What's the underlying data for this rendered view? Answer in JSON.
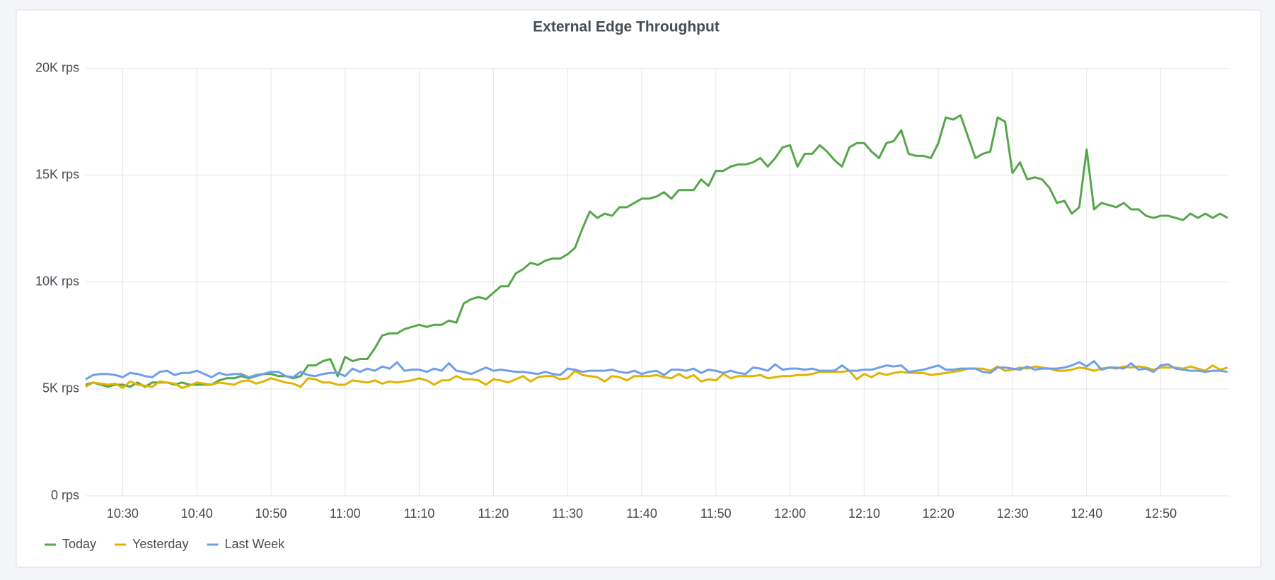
{
  "chart_data": {
    "type": "line",
    "title": "External Edge Throughput",
    "x": [
      "10:25",
      "10:26",
      "10:27",
      "10:28",
      "10:29",
      "10:30",
      "10:31",
      "10:32",
      "10:33",
      "10:34",
      "10:35",
      "10:36",
      "10:37",
      "10:38",
      "10:39",
      "10:40",
      "10:41",
      "10:42",
      "10:43",
      "10:44",
      "10:45",
      "10:46",
      "10:47",
      "10:48",
      "10:49",
      "10:50",
      "10:51",
      "10:52",
      "10:53",
      "10:54",
      "10:55",
      "10:56",
      "10:57",
      "10:58",
      "10:59",
      "11:00",
      "11:01",
      "11:02",
      "11:03",
      "11:04",
      "11:05",
      "11:06",
      "11:07",
      "11:08",
      "11:09",
      "11:10",
      "11:11",
      "11:12",
      "11:13",
      "11:14",
      "11:15",
      "11:16",
      "11:17",
      "11:18",
      "11:19",
      "11:20",
      "11:21",
      "11:22",
      "11:23",
      "11:24",
      "11:25",
      "11:26",
      "11:27",
      "11:28",
      "11:29",
      "11:30",
      "11:31",
      "11:32",
      "11:33",
      "11:34",
      "11:35",
      "11:36",
      "11:37",
      "11:38",
      "11:39",
      "11:40",
      "11:41",
      "11:42",
      "11:43",
      "11:44",
      "11:45",
      "11:46",
      "11:47",
      "11:48",
      "11:49",
      "11:50",
      "11:51",
      "11:52",
      "11:53",
      "11:54",
      "11:55",
      "11:56",
      "11:57",
      "11:58",
      "11:59",
      "12:00",
      "12:01",
      "12:02",
      "12:03",
      "12:04",
      "12:05",
      "12:06",
      "12:07",
      "12:08",
      "12:09",
      "12:10",
      "12:11",
      "12:12",
      "12:13",
      "12:14",
      "12:15",
      "12:16",
      "12:17",
      "12:18",
      "12:19",
      "12:20",
      "12:21",
      "12:22",
      "12:23",
      "12:24",
      "12:25",
      "12:26",
      "12:27",
      "12:28",
      "12:29",
      "12:30",
      "12:31",
      "12:32",
      "12:33",
      "12:34",
      "12:35",
      "12:36",
      "12:37",
      "12:38",
      "12:39",
      "12:40",
      "12:41",
      "12:42",
      "12:43",
      "12:44",
      "12:45",
      "12:46",
      "12:47",
      "12:48",
      "12:49",
      "12:50",
      "12:51",
      "12:52",
      "12:53",
      "12:54",
      "12:55",
      "12:56",
      "12:57",
      "12:58",
      "12:59"
    ],
    "xlim": [
      "10:25",
      "12:59"
    ],
    "xticks": [
      "10:30",
      "10:40",
      "10:50",
      "11:00",
      "11:10",
      "11:20",
      "11:30",
      "11:40",
      "11:50",
      "12:00",
      "12:10",
      "12:20",
      "12:30",
      "12:40",
      "12:50"
    ],
    "ylim": [
      0,
      20000
    ],
    "yticks": [
      {
        "value": 0,
        "label": "0 rps"
      },
      {
        "value": 5000,
        "label": "5K rps"
      },
      {
        "value": 10000,
        "label": "10K rps"
      },
      {
        "value": 15000,
        "label": "15K rps"
      },
      {
        "value": 20000,
        "label": "20K rps"
      }
    ],
    "grid": true,
    "legend": "bottom-left",
    "series": [
      {
        "name": "Today",
        "color": "#56a64b",
        "values": [
          5200,
          5300,
          5200,
          5100,
          5200,
          5200,
          5100,
          5300,
          5100,
          5300,
          5300,
          5300,
          5200,
          5300,
          5200,
          5200,
          5200,
          5200,
          5400,
          5500,
          5500,
          5600,
          5500,
          5600,
          5700,
          5700,
          5600,
          5600,
          5500,
          5600,
          6100,
          6100,
          6300,
          6400,
          5600,
          6500,
          6300,
          6400,
          6400,
          6900,
          7500,
          7600,
          7600,
          7800,
          7900,
          8000,
          7900,
          8000,
          8000,
          8200,
          8100,
          9000,
          9200,
          9300,
          9200,
          9500,
          9800,
          9800,
          10400,
          10600,
          10900,
          10800,
          11000,
          11100,
          11100,
          11300,
          11600,
          12500,
          13300,
          13000,
          13200,
          13100,
          13500,
          13500,
          13700,
          13900,
          13900,
          14000,
          14200,
          13900,
          14300,
          14300,
          14300,
          14800,
          14500,
          15200,
          15200,
          15400,
          15500,
          15500,
          15600,
          15800,
          15400,
          15800,
          16300,
          16400,
          15400,
          16000,
          16000,
          16400,
          16100,
          15700,
          15400,
          16300,
          16500,
          16500,
          16100,
          15800,
          16500,
          16600,
          17100,
          16000,
          15900,
          15900,
          15800,
          16500,
          17700,
          17600,
          17800,
          16800,
          15800,
          16000,
          16100,
          17700,
          17500,
          15100,
          15600,
          14800,
          14900,
          14800,
          14400,
          13700,
          13800,
          13200,
          13500,
          16200,
          13400,
          13700,
          13600,
          13500,
          13700,
          13400,
          13400,
          13100,
          13000,
          13100,
          13100,
          13000,
          12900,
          13200,
          13000,
          13200,
          13000,
          13200,
          13000
        ]
      },
      {
        "name": "Yesterday",
        "color": "#e0b400",
        "values": [
          5100,
          5300,
          5250,
          5200,
          5250,
          5050,
          5350,
          5200,
          5150,
          5100,
          5350,
          5300,
          5250,
          5050,
          5150,
          5300,
          5250,
          5200,
          5300,
          5250,
          5200,
          5350,
          5400,
          5250,
          5350,
          5500,
          5400,
          5300,
          5250,
          5100,
          5500,
          5450,
          5300,
          5300,
          5200,
          5200,
          5400,
          5350,
          5300,
          5400,
          5250,
          5350,
          5300,
          5350,
          5400,
          5500,
          5400,
          5200,
          5400,
          5400,
          5600,
          5450,
          5450,
          5400,
          5200,
          5450,
          5400,
          5300,
          5450,
          5600,
          5350,
          5550,
          5600,
          5600,
          5450,
          5500,
          5850,
          5650,
          5600,
          5550,
          5350,
          5600,
          5550,
          5400,
          5600,
          5600,
          5600,
          5650,
          5550,
          5500,
          5700,
          5500,
          5650,
          5350,
          5450,
          5400,
          5700,
          5500,
          5600,
          5600,
          5600,
          5650,
          5500,
          5550,
          5600,
          5600,
          5650,
          5650,
          5700,
          5800,
          5800,
          5800,
          5800,
          5850,
          5450,
          5700,
          5550,
          5750,
          5650,
          5750,
          5800,
          5750,
          5750,
          5750,
          5650,
          5700,
          5750,
          5800,
          5850,
          5950,
          5950,
          5950,
          5850,
          6050,
          5850,
          5900,
          6000,
          5950,
          6050,
          6000,
          5950,
          5850,
          5850,
          5900,
          6000,
          5950,
          5850,
          5950,
          6000,
          5950,
          6050,
          6000,
          6050,
          6000,
          5900,
          6000,
          6000,
          6000,
          5950,
          6050,
          5950,
          5850,
          6100,
          5900,
          6000
        ]
      },
      {
        "name": "Last Week",
        "color": "#6e9fe8",
        "values": [
          5450,
          5650,
          5700,
          5700,
          5650,
          5550,
          5750,
          5700,
          5600,
          5550,
          5800,
          5850,
          5650,
          5750,
          5750,
          5850,
          5700,
          5550,
          5750,
          5650,
          5700,
          5700,
          5550,
          5650,
          5700,
          5800,
          5800,
          5600,
          5550,
          5800,
          5650,
          5600,
          5700,
          5750,
          5750,
          5600,
          5950,
          5800,
          5950,
          5850,
          6050,
          5950,
          6250,
          5850,
          5900,
          5900,
          5800,
          5950,
          5850,
          6200,
          5850,
          5800,
          5700,
          5850,
          6000,
          5850,
          5900,
          5850,
          5800,
          5800,
          5750,
          5700,
          5800,
          5700,
          5650,
          5950,
          5900,
          5800,
          5850,
          5850,
          5850,
          5900,
          5800,
          5750,
          5850,
          5700,
          5800,
          5850,
          5650,
          5900,
          5900,
          5850,
          5950,
          5750,
          5900,
          5850,
          5750,
          5850,
          5750,
          5700,
          6000,
          5950,
          5850,
          6150,
          5900,
          5950,
          5950,
          5900,
          5950,
          5850,
          5850,
          5850,
          6100,
          5850,
          5850,
          5900,
          5900,
          6000,
          6100,
          6050,
          6100,
          5800,
          5850,
          5900,
          6000,
          6100,
          5900,
          5900,
          5950,
          5950,
          5950,
          5800,
          5750,
          6000,
          6000,
          5950,
          5900,
          6050,
          5900,
          5950,
          5950,
          5950,
          6000,
          6100,
          6250,
          6050,
          6300,
          5900,
          6000,
          6000,
          5950,
          6200,
          5900,
          5950,
          5800,
          6100,
          6150,
          5950,
          5900,
          5850,
          5850,
          5800,
          5850,
          5850,
          5800
        ]
      }
    ]
  }
}
